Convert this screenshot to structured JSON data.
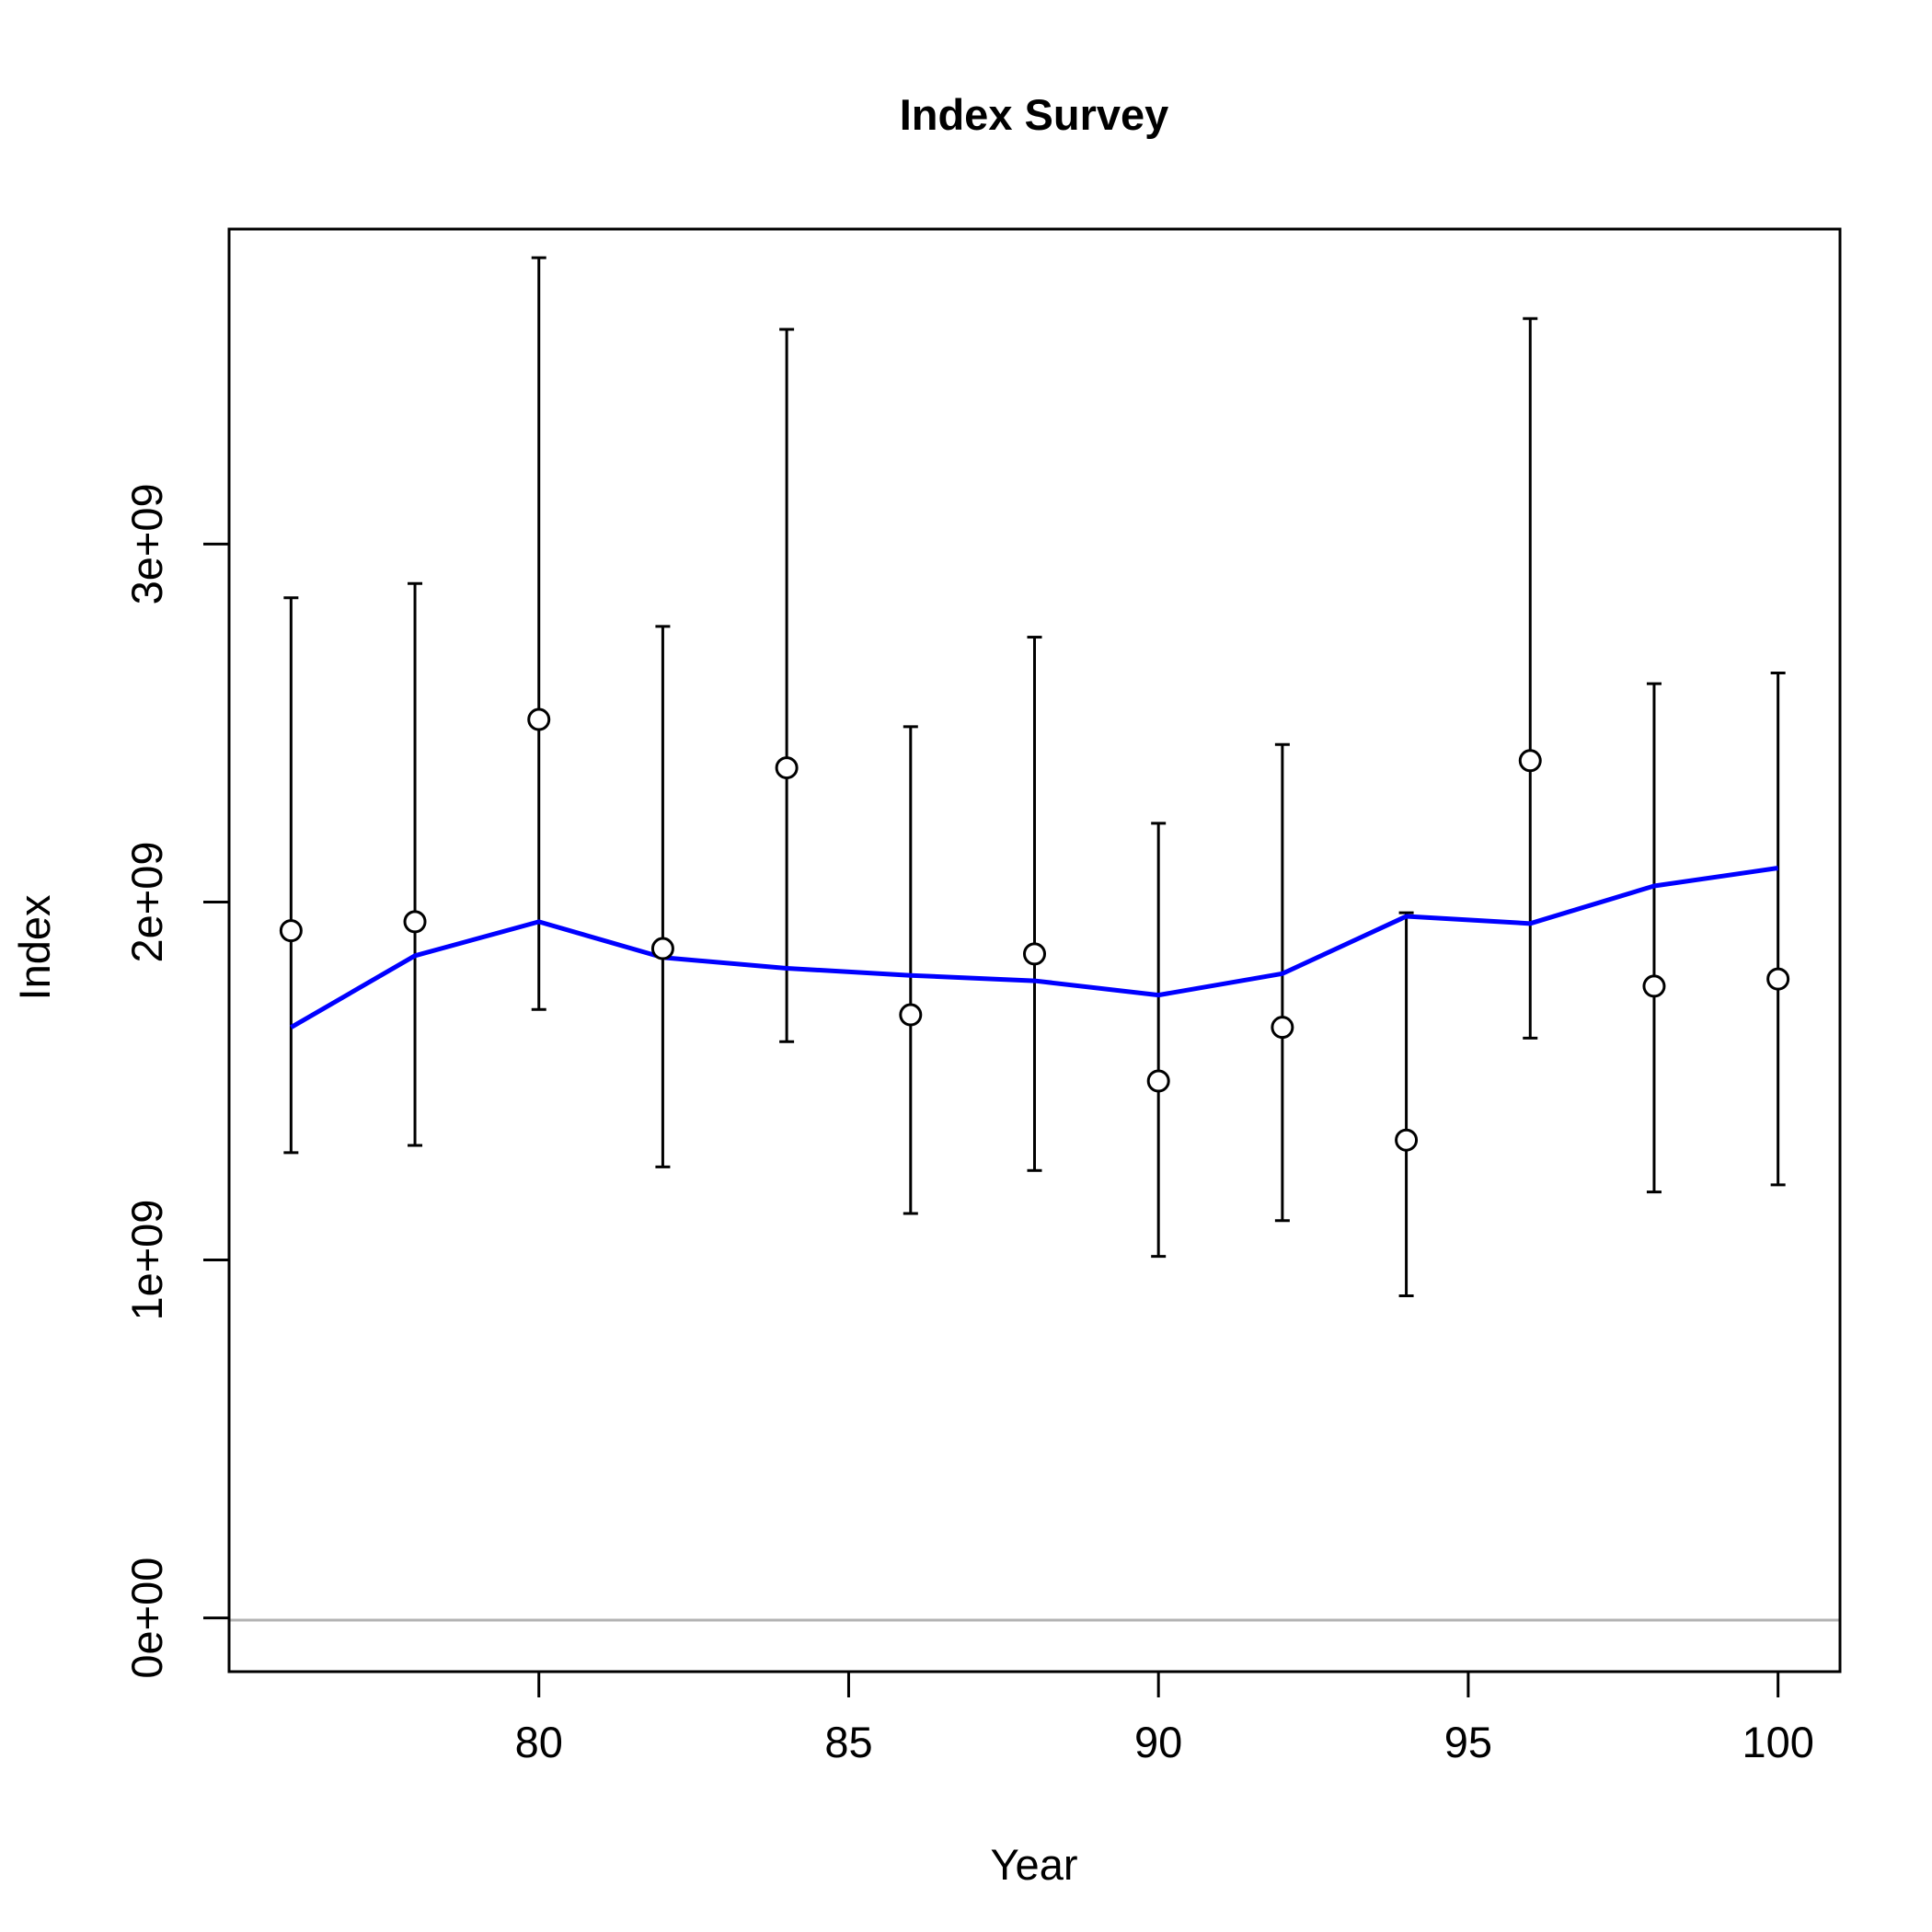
{
  "chart_data": {
    "type": "line",
    "title": "Index Survey",
    "xlabel": "Year",
    "ylabel": "Index",
    "xlim": [
      75,
      101
    ],
    "ylim": [
      -150000000,
      3880000000
    ],
    "x_ticks": [
      {
        "value": 80,
        "label": "80"
      },
      {
        "value": 85,
        "label": "85"
      },
      {
        "value": 90,
        "label": "90"
      },
      {
        "value": 95,
        "label": "95"
      },
      {
        "value": 100,
        "label": "100"
      }
    ],
    "y_ticks": [
      {
        "value": 0,
        "label": "0e+00"
      },
      {
        "value": 1000000000,
        "label": "1e+09"
      },
      {
        "value": 2000000000,
        "label": "2e+09"
      },
      {
        "value": 3000000000,
        "label": "3e+09"
      }
    ],
    "reference_line": {
      "y": 0,
      "color": "#b3b3b3"
    },
    "series": [
      {
        "kind": "observed_with_error_bars",
        "marker": "open-circle",
        "color": "#000000",
        "x": [
          76,
          78,
          80,
          82,
          84,
          86,
          88,
          90,
          92,
          94,
          96,
          98,
          100
        ],
        "y": [
          1920000000,
          1945000000,
          2510000000,
          1870000000,
          2375000000,
          1685000000,
          1855000000,
          1500000000,
          1650000000,
          1335000000,
          2395000000,
          1765000000,
          1785000000
        ],
        "lower": [
          1300000000,
          1320000000,
          1700000000,
          1260000000,
          1610000000,
          1130000000,
          1250000000,
          1010000000,
          1110000000,
          900000000,
          1620000000,
          1190000000,
          1210000000
        ],
        "upper": [
          2850000000,
          2890000000,
          3800000000,
          2770000000,
          3600000000,
          2490000000,
          2740000000,
          2220000000,
          2440000000,
          1970000000,
          3630000000,
          2610000000,
          2640000000
        ]
      },
      {
        "kind": "fitted",
        "color": "#0000ff",
        "x": [
          76,
          78,
          80,
          82,
          84,
          86,
          88,
          90,
          92,
          94,
          96,
          98,
          100
        ],
        "y": [
          1650000000,
          1850000000,
          1945000000,
          1845000000,
          1815000000,
          1795000000,
          1780000000,
          1740000000,
          1800000000,
          1960000000,
          1940000000,
          2045000000,
          2095000000
        ]
      }
    ]
  }
}
